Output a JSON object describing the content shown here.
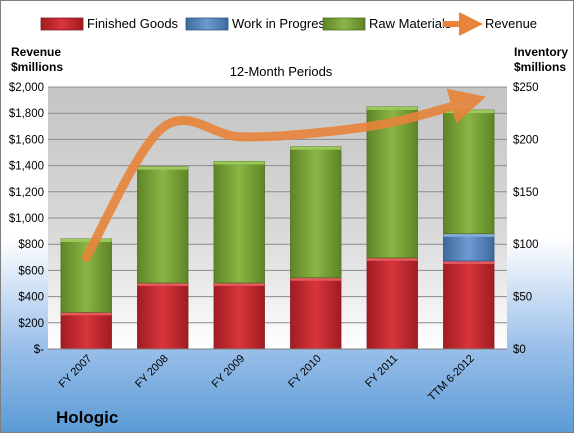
{
  "company": "Hologic",
  "chart_data": {
    "type": "bar",
    "subtitle": "12-Month Periods",
    "categories": [
      "FY 2007",
      "FY 2008",
      "FY 2009",
      "FY 2010",
      "FY 2011",
      "TTM 6-2012"
    ],
    "left_axis": {
      "label_line1": "Revenue",
      "label_line2": "$millions",
      "ylim": [
        0,
        2000
      ],
      "ticks": [
        "$-",
        "$200",
        "$400",
        "$600",
        "$800",
        "$1,000",
        "$1,200",
        "$1,400",
        "$1,600",
        "$1,800",
        "$2,000"
      ]
    },
    "right_axis": {
      "label_line1": "Inventory",
      "label_line2": "$millions",
      "ylim": [
        0,
        250
      ],
      "ticks": [
        "$0",
        "$50",
        "$100",
        "$150",
        "$200",
        "$250"
      ]
    },
    "series": [
      {
        "name": "Finished Goods",
        "type": "bar",
        "axis": "right",
        "color": "#c0272d",
        "values": [
          35,
          63,
          63,
          68,
          87,
          84
        ]
      },
      {
        "name": "Work in Progress",
        "type": "bar",
        "axis": "right",
        "color": "#4f81bd",
        "values": [
          0,
          0,
          0,
          0,
          0,
          26
        ]
      },
      {
        "name": "Raw Materials",
        "type": "bar",
        "axis": "right",
        "color": "#77a033",
        "values": [
          70,
          111,
          116,
          125,
          144,
          118
        ]
      },
      {
        "name": "Revenue",
        "type": "line",
        "axis": "left",
        "color": "#e8843a",
        "values": [
          700,
          1690,
          1620,
          1650,
          1730,
          1890
        ]
      }
    ],
    "grid": true,
    "legend_position": "top"
  }
}
